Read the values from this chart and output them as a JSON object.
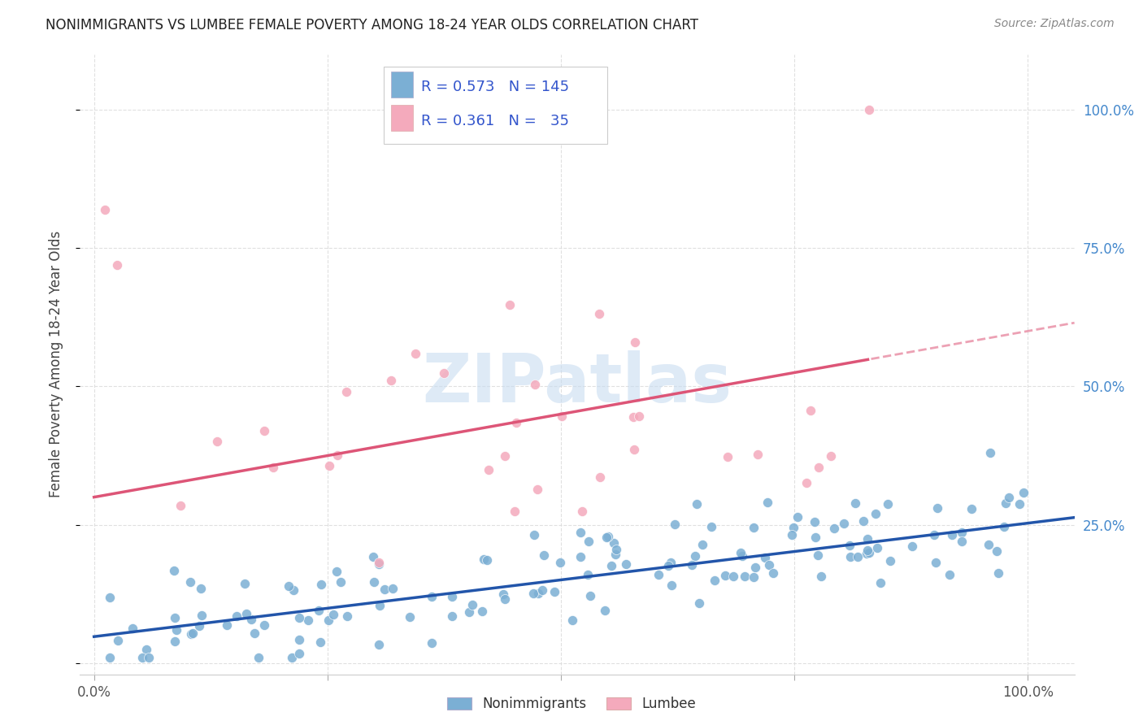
{
  "title": "NONIMMIGRANTS VS LUMBEE FEMALE POVERTY AMONG 18-24 YEAR OLDS CORRELATION CHART",
  "source": "Source: ZipAtlas.com",
  "ylabel": "Female Poverty Among 18-24 Year Olds",
  "nonimmigrants_color": "#7BAFD4",
  "lumbee_color": "#F4AABC",
  "nonimmigrants_line_color": "#2255AA",
  "lumbee_line_color": "#DD5577",
  "legend_R_color": "#3355CC",
  "right_axis_color": "#4488CC",
  "bottom_label_color": "#3388CC",
  "background_color": "#FFFFFF",
  "nonimmigrants_R": 0.573,
  "nonimmigrants_N": 145,
  "lumbee_R": 0.361,
  "lumbee_N": 35,
  "watermark_color": "#C8DCF0",
  "grid_color": "#DDDDDD",
  "title_color": "#222222",
  "source_color": "#888888",
  "ylabel_color": "#444444",
  "ni_intercept": 0.05,
  "ni_slope": 0.2,
  "lb_intercept": 0.3,
  "lb_slope": 0.28,
  "ni_noise": 0.045,
  "lb_noise": 0.09
}
